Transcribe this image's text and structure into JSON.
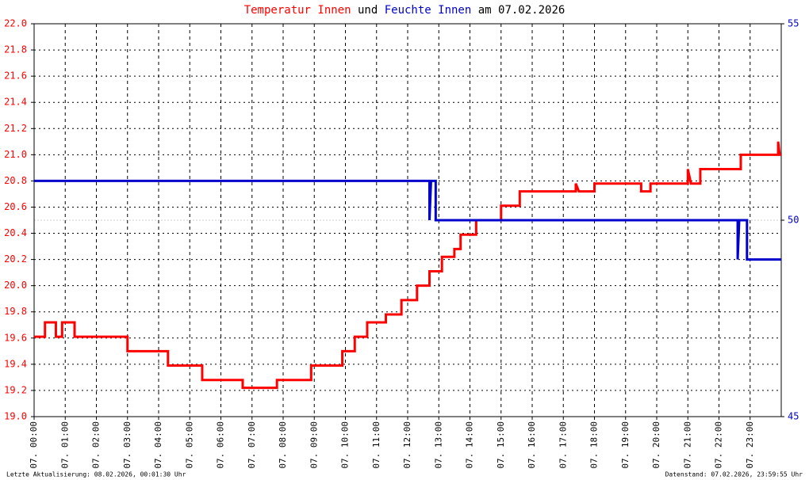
{
  "chart_data": {
    "type": "line",
    "title_joiner": "und",
    "title_date": "am 07.02.2026",
    "footer_left": "Letzte Aktualisierung: 08.02.2026, 00:01:30 Uhr",
    "footer_right": "Datenstand: 07.02.2026, 23:59:55 Uhr",
    "grid": true,
    "xlim": [
      0,
      24
    ],
    "xticks": [
      {
        "value": 0,
        "label": "07. 00:00"
      },
      {
        "value": 1,
        "label": "07. 01:00"
      },
      {
        "value": 2,
        "label": "07. 02:00"
      },
      {
        "value": 3,
        "label": "07. 03:00"
      },
      {
        "value": 4,
        "label": "07. 04:00"
      },
      {
        "value": 5,
        "label": "07. 05:00"
      },
      {
        "value": 6,
        "label": "07. 06:00"
      },
      {
        "value": 7,
        "label": "07. 07:00"
      },
      {
        "value": 8,
        "label": "07. 08:00"
      },
      {
        "value": 9,
        "label": "07. 09:00"
      },
      {
        "value": 10,
        "label": "07. 10:00"
      },
      {
        "value": 11,
        "label": "07. 11:00"
      },
      {
        "value": 12,
        "label": "07. 12:00"
      },
      {
        "value": 13,
        "label": "07. 13:00"
      },
      {
        "value": 14,
        "label": "07. 14:00"
      },
      {
        "value": 15,
        "label": "07. 15:00"
      },
      {
        "value": 16,
        "label": "07. 16:00"
      },
      {
        "value": 17,
        "label": "07. 17:00"
      },
      {
        "value": 18,
        "label": "07. 18:00"
      },
      {
        "value": 19,
        "label": "07. 19:00"
      },
      {
        "value": 20,
        "label": "07. 20:00"
      },
      {
        "value": 21,
        "label": "07. 21:00"
      },
      {
        "value": 22,
        "label": "07. 22:00"
      },
      {
        "value": 23,
        "label": "07. 23:00"
      }
    ],
    "ylim": [
      19.0,
      22.0
    ],
    "yticks": [
      {
        "value": 19.0,
        "label": "19.0"
      },
      19.2,
      19.4,
      19.6,
      19.8,
      {
        "value": 20.0,
        "label": "20.0"
      },
      20.2,
      20.4,
      20.6,
      20.8,
      {
        "value": 21.0,
        "label": "21.0"
      },
      21.2,
      21.4,
      21.6,
      21.8,
      {
        "value": 22.0,
        "label": "22.0"
      }
    ],
    "y2lim": [
      45,
      55
    ],
    "y2ticks": [
      45,
      50,
      55
    ],
    "series": [
      {
        "name": "Temperatur Innen",
        "color": "#ff0000",
        "x": [
          0,
          0.35,
          0.35,
          0.7,
          0.7,
          0.9,
          0.9,
          1.3,
          1.3,
          3.0,
          3.0,
          4.3,
          4.3,
          5.4,
          5.4,
          6.7,
          6.7,
          7.8,
          7.8,
          8.9,
          8.9,
          9.9,
          9.9,
          10.3,
          10.3,
          10.7,
          10.7,
          11.3,
          11.3,
          11.8,
          11.8,
          12.3,
          12.3,
          12.7,
          12.7,
          13.1,
          13.1,
          13.5,
          13.5,
          13.7,
          13.7,
          14.2,
          14.2,
          15.0,
          15.0,
          15.6,
          15.6,
          17.4,
          17.4,
          17.5,
          18.0,
          18.0,
          19.5,
          19.5,
          19.8,
          19.8,
          21.0,
          21.0,
          21.1,
          21.4,
          21.4,
          22.7,
          22.7,
          23.9,
          23.9,
          23.95,
          24
        ],
        "values": [
          19.61,
          19.61,
          19.72,
          19.72,
          19.61,
          19.61,
          19.72,
          19.72,
          19.61,
          19.61,
          19.5,
          19.5,
          19.39,
          19.39,
          19.28,
          19.28,
          19.22,
          19.22,
          19.28,
          19.28,
          19.39,
          19.39,
          19.5,
          19.5,
          19.61,
          19.61,
          19.72,
          19.72,
          19.78,
          19.78,
          19.89,
          19.89,
          20.0,
          20.0,
          20.11,
          20.11,
          20.22,
          20.22,
          20.28,
          20.28,
          20.39,
          20.39,
          20.5,
          20.5,
          20.61,
          20.61,
          20.72,
          20.72,
          20.78,
          20.72,
          20.72,
          20.78,
          20.78,
          20.72,
          20.72,
          20.78,
          20.78,
          20.89,
          20.78,
          20.78,
          20.89,
          20.89,
          21.0,
          21.0,
          21.1,
          21.0,
          21.0
        ]
      },
      {
        "name": "Feuchte Innen",
        "color": "#0000cc",
        "axis": "y2",
        "x": [
          0,
          12.7,
          12.7,
          12.75,
          12.9,
          12.9,
          22.6,
          22.6,
          22.65,
          22.9,
          22.9,
          24
        ],
        "values": [
          51,
          51,
          50,
          51,
          51,
          50,
          50,
          49,
          50,
          50,
          49,
          49
        ]
      }
    ]
  }
}
